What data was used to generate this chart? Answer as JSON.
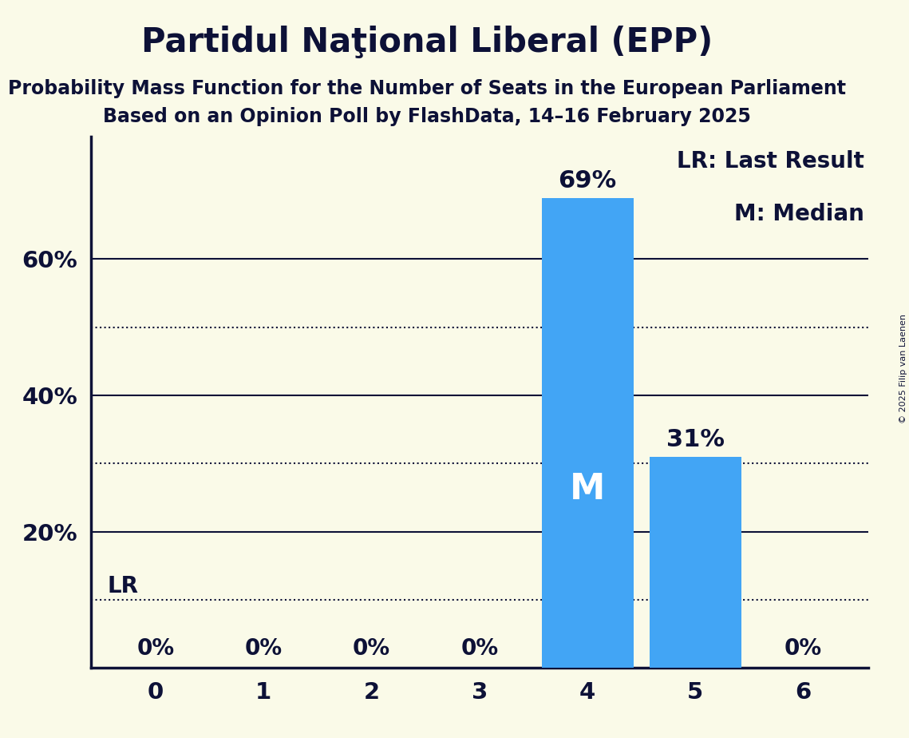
{
  "title": "Partidul Naţional Liberal (EPP)",
  "subtitle1": "Probability Mass Function for the Number of Seats in the European Parliament",
  "subtitle2": "Based on an Opinion Poll by FlashData, 14–16 February 2025",
  "copyright": "© 2025 Filip van Laenen",
  "categories": [
    0,
    1,
    2,
    3,
    4,
    5,
    6
  ],
  "values": [
    0,
    0,
    0,
    0,
    0.69,
    0.31,
    0
  ],
  "bar_color": "#42A5F5",
  "background_color": "#FAFAE8",
  "median_seat": 4,
  "lr_value": 0.1,
  "lr_label": "LR",
  "median_label": "M",
  "major_yticks": [
    0.2,
    0.4,
    0.6
  ],
  "minor_yticks": [
    0.1,
    0.3,
    0.5
  ],
  "ylim": [
    0,
    0.78
  ],
  "xlim": [
    -0.6,
    6.6
  ],
  "legend_lr": "LR: Last Result",
  "legend_m": "M: Median",
  "title_fontsize": 30,
  "subtitle_fontsize": 17,
  "label_fontsize": 20,
  "tick_fontsize": 21,
  "bar_label_fontsize": 22,
  "zero_label_fontsize": 20,
  "median_label_fontsize": 32,
  "text_color": "#0d1137",
  "grid_color": "#0d1137",
  "bar_width": 0.85
}
